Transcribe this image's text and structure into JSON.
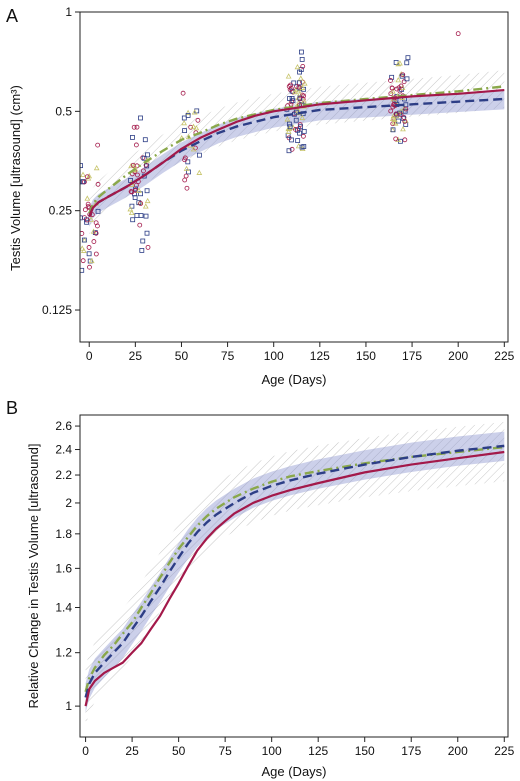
{
  "colors": {
    "red": "#a3194a",
    "blue": "#2d3e86",
    "green": "#8aa84b",
    "band_blue": "#8f96d0",
    "hatch_grey": "#8c8c8c",
    "point_yellow": "#c7c46a"
  },
  "chart_data": [
    {
      "panel": "A",
      "type": "scatter",
      "xlabel": "Age (Days)",
      "ylabel": "Testis Volume [ultrasound] (cm³)",
      "yscale": "log2",
      "xlim": [
        -5,
        227
      ],
      "ylim": [
        0.1,
        1.0
      ],
      "xticks": [
        0,
        25,
        50,
        75,
        100,
        125,
        150,
        175,
        200,
        225
      ],
      "yticks": [
        0.125,
        0.25,
        0.5,
        1
      ],
      "ytick_labels": [
        "0.125",
        "0.25",
        "0.5",
        "1"
      ],
      "grid": false,
      "legend": "none",
      "point_groups": [
        {
          "day": 0,
          "n": 45,
          "mean": 0.25,
          "spread": 0.29
        },
        {
          "day": 27,
          "n": 55,
          "mean": 0.31,
          "spread": 0.25
        },
        {
          "day": 55,
          "n": 28,
          "mean": 0.42,
          "spread": 0.22
        },
        {
          "day": 112,
          "n": 80,
          "mean": 0.52,
          "spread": 0.22
        },
        {
          "day": 168,
          "n": 70,
          "mean": 0.56,
          "spread": 0.2
        },
        {
          "day": 200,
          "n": 1,
          "mean": 0.86,
          "spread": 0.0
        }
      ],
      "series": [
        {
          "color_key": "red",
          "style": "solid",
          "x": [
            0,
            2,
            5,
            10,
            20,
            30,
            40,
            50,
            60,
            70,
            80,
            90,
            100,
            125,
            150,
            175,
            200,
            225
          ],
          "y": [
            0.24,
            0.255,
            0.265,
            0.275,
            0.295,
            0.32,
            0.35,
            0.385,
            0.415,
            0.44,
            0.465,
            0.485,
            0.5,
            0.525,
            0.54,
            0.555,
            0.565,
            0.58
          ]
        },
        {
          "color_key": "blue",
          "style": "dashed",
          "x": [
            0,
            2,
            5,
            10,
            20,
            30,
            40,
            50,
            60,
            70,
            80,
            90,
            100,
            125,
            150,
            175,
            200,
            225
          ],
          "y": [
            0.24,
            0.255,
            0.265,
            0.275,
            0.295,
            0.32,
            0.35,
            0.38,
            0.405,
            0.43,
            0.45,
            0.465,
            0.48,
            0.505,
            0.515,
            0.525,
            0.535,
            0.545
          ]
        },
        {
          "color_key": "green",
          "style": "dashdot",
          "x": [
            0,
            2,
            5,
            10,
            20,
            30,
            40,
            50,
            60,
            70,
            80,
            90,
            100,
            125,
            150,
            175,
            200,
            225
          ],
          "y": [
            0.245,
            0.262,
            0.275,
            0.29,
            0.32,
            0.35,
            0.38,
            0.41,
            0.43,
            0.455,
            0.475,
            0.49,
            0.505,
            0.53,
            0.545,
            0.56,
            0.575,
            0.595
          ]
        }
      ],
      "bands": [
        {
          "kind": "hatched",
          "color_key": "hatch_grey",
          "around": "green",
          "lower_factor": 0.86,
          "upper_factor": 1.12
        },
        {
          "kind": "shaded",
          "color_key": "band_blue",
          "around": "blue",
          "lower_factor": 0.93,
          "upper_factor": 1.06
        }
      ]
    },
    {
      "panel": "B",
      "type": "line",
      "xlabel": "Age (Days)",
      "ylabel": "Relative Change in Testis Volume [ultrasound]",
      "yscale": "log2",
      "xlim": [
        -3,
        227
      ],
      "ylim": [
        0.9,
        2.7
      ],
      "xticks": [
        0,
        25,
        50,
        75,
        100,
        125,
        150,
        175,
        200,
        225
      ],
      "yticks": [
        1,
        1.2,
        1.4,
        1.6,
        1.8,
        2,
        2.2,
        2.4,
        2.6
      ],
      "ytick_labels": [
        "1",
        "1.2",
        "1.4",
        "1.6",
        "1.8",
        "2",
        "2.2",
        "2.4",
        "2.6"
      ],
      "grid": false,
      "legend": "none",
      "series": [
        {
          "color_key": "red",
          "style": "solid",
          "x": [
            0,
            2,
            5,
            10,
            15,
            20,
            25,
            30,
            35,
            40,
            45,
            50,
            55,
            60,
            65,
            70,
            75,
            80,
            90,
            100,
            110,
            125,
            150,
            175,
            200,
            225
          ],
          "y": [
            1.0,
            1.06,
            1.09,
            1.12,
            1.14,
            1.16,
            1.2,
            1.24,
            1.3,
            1.36,
            1.44,
            1.52,
            1.61,
            1.7,
            1.77,
            1.83,
            1.88,
            1.93,
            2.0,
            2.05,
            2.09,
            2.14,
            2.22,
            2.28,
            2.33,
            2.38
          ]
        },
        {
          "color_key": "blue",
          "style": "dashed",
          "x": [
            0,
            2,
            5,
            10,
            15,
            20,
            25,
            30,
            35,
            40,
            45,
            50,
            55,
            60,
            65,
            70,
            75,
            80,
            90,
            100,
            110,
            125,
            150,
            175,
            200,
            225
          ],
          "y": [
            1.03,
            1.08,
            1.12,
            1.16,
            1.2,
            1.24,
            1.3,
            1.36,
            1.43,
            1.5,
            1.58,
            1.66,
            1.74,
            1.81,
            1.87,
            1.92,
            1.96,
            2.0,
            2.07,
            2.12,
            2.16,
            2.21,
            2.28,
            2.34,
            2.39,
            2.43
          ]
        },
        {
          "color_key": "green",
          "style": "dashdot",
          "x": [
            0,
            2,
            5,
            10,
            15,
            20,
            25,
            30,
            35,
            40,
            45,
            50,
            55,
            60,
            65,
            70,
            75,
            80,
            90,
            100,
            110,
            125,
            150,
            175,
            200,
            225
          ],
          "y": [
            1.05,
            1.1,
            1.14,
            1.19,
            1.23,
            1.28,
            1.33,
            1.4,
            1.47,
            1.55,
            1.63,
            1.71,
            1.78,
            1.85,
            1.91,
            1.96,
            2.0,
            2.04,
            2.1,
            2.15,
            2.19,
            2.23,
            2.29,
            2.34,
            2.38,
            2.42
          ]
        }
      ],
      "bands": [
        {
          "kind": "hatched",
          "color_key": "hatch_grey",
          "around": "green",
          "lower_factor": 0.89,
          "upper_factor": 1.09
        },
        {
          "kind": "shaded",
          "color_key": "band_blue",
          "around": "blue",
          "lower_factor": 0.95,
          "upper_factor": 1.05
        }
      ]
    }
  ],
  "panels": {
    "a": {
      "letter": "A",
      "xlabel": "Age (Days)",
      "ylabel": "Testis Volume [ultrasound] (cm³)"
    },
    "b": {
      "letter": "B",
      "xlabel": "Age (Days)",
      "ylabel": "Relative Change in Testis Volume [ultrasound]"
    }
  }
}
